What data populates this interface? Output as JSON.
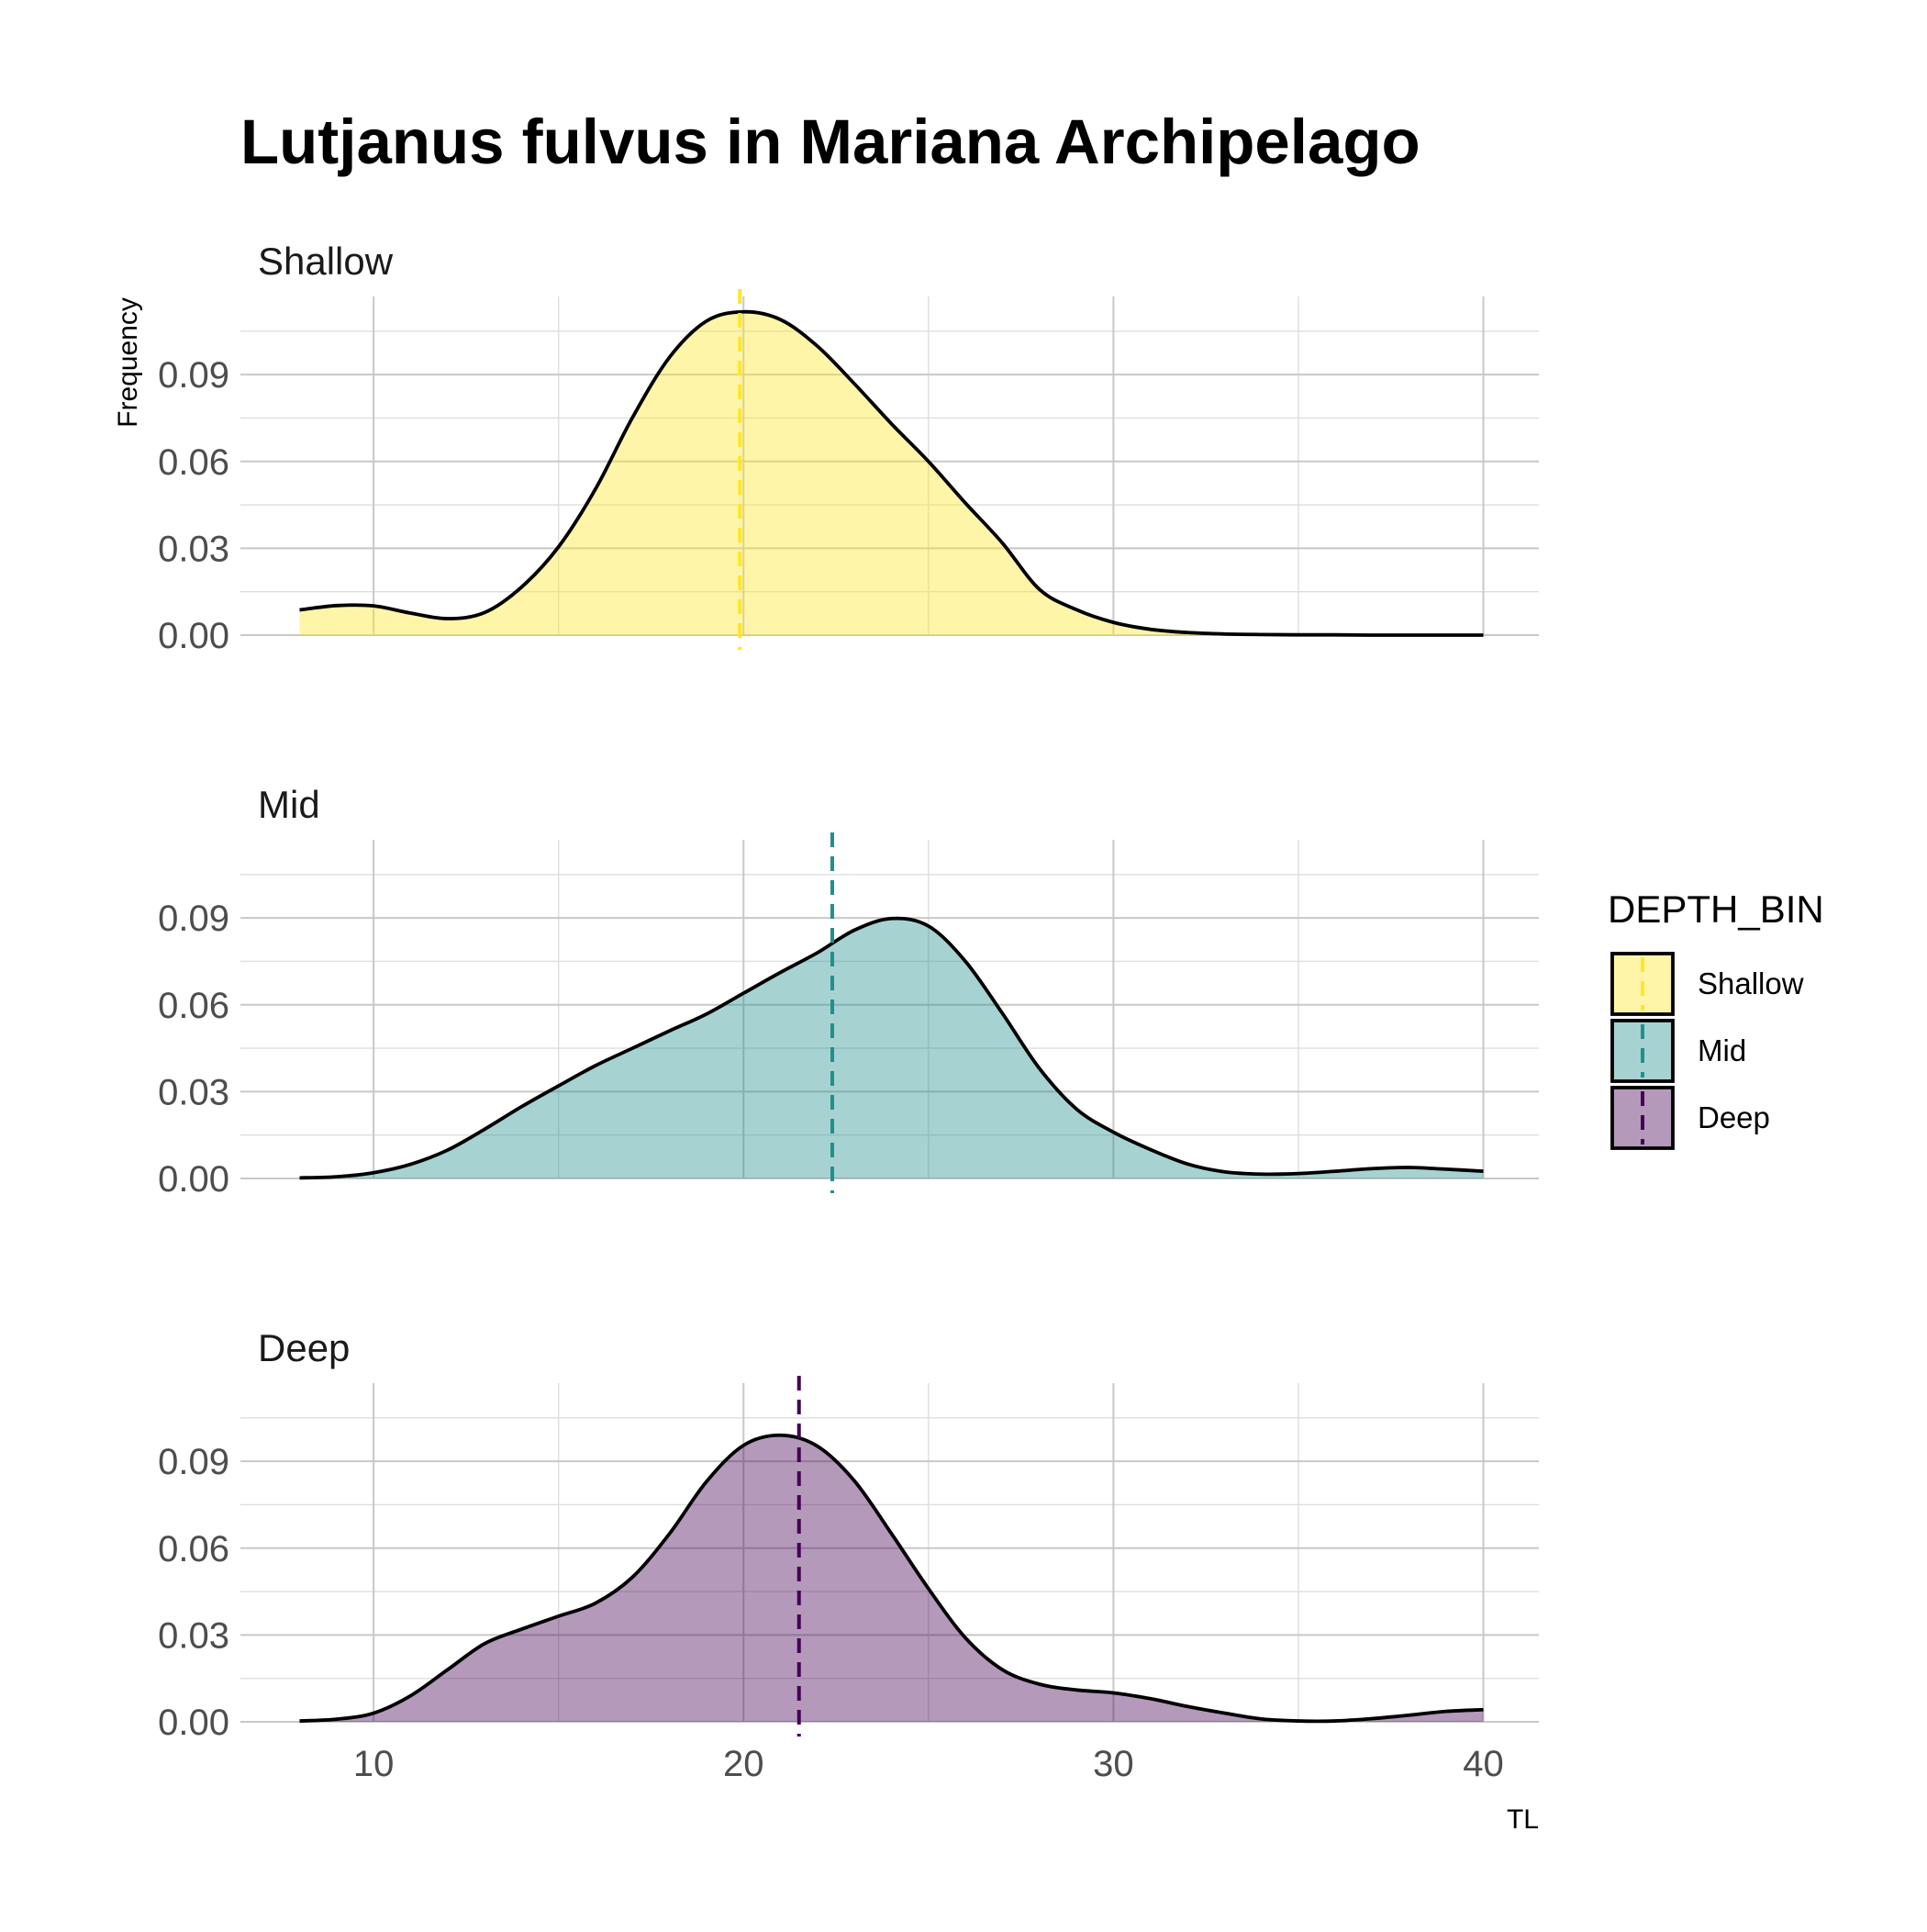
{
  "chart_data": {
    "type": "area",
    "subtype": "density, faceted by depth bin",
    "title": "Lutjanus fulvus in Mariana Archipelago",
    "xlabel": "TL",
    "ylabel": "Frequency",
    "xlim": [
      6.4,
      41.5
    ],
    "ylim": [
      0,
      0.117
    ],
    "x_ticks": [
      10,
      20,
      30,
      40
    ],
    "y_ticks": [
      0,
      0.03,
      0.06,
      0.09
    ],
    "y_tick_labels": [
      "0.00",
      "0.03",
      "0.06",
      "0.09"
    ],
    "x_minor_ticks": [
      15,
      25,
      35
    ],
    "y_minor_ticks": [
      0.015,
      0.045,
      0.075,
      0.105
    ],
    "grid": true,
    "legend": {
      "title": "DEPTH_BIN",
      "position": "right",
      "entries": [
        "Shallow",
        "Mid",
        "Deep"
      ]
    },
    "series": [
      {
        "name": "Shallow",
        "fill": "#FDE725",
        "fill_opacity": 0.4,
        "mean": 19.9,
        "x": [
          8,
          9,
          10,
          11,
          12,
          13,
          14,
          15,
          16,
          17,
          18,
          19,
          20,
          21,
          22,
          23,
          24,
          25,
          26,
          27,
          28,
          29,
          30,
          31,
          32,
          33,
          34,
          35,
          36,
          37,
          38,
          39,
          40
        ],
        "y": [
          0.0087,
          0.0102,
          0.0101,
          0.0076,
          0.0057,
          0.0078,
          0.0166,
          0.0305,
          0.0505,
          0.0752,
          0.096,
          0.1085,
          0.1117,
          0.109,
          0.0998,
          0.0868,
          0.073,
          0.06,
          0.0456,
          0.0318,
          0.0158,
          0.0088,
          0.0044,
          0.002,
          0.0009,
          0.0004,
          0.0002,
          0.0001,
          0.0001,
          0.0,
          0.0,
          0.0,
          0.0
        ]
      },
      {
        "name": "Mid",
        "fill": "#21908C",
        "fill_opacity": 0.4,
        "mean": 22.4,
        "x": [
          8,
          9,
          10,
          11,
          12,
          13,
          14,
          15,
          16,
          17,
          18,
          19,
          20,
          21,
          22,
          23,
          24,
          25,
          26,
          27,
          28,
          29,
          30,
          31,
          32,
          33,
          34,
          35,
          36,
          37,
          38,
          39,
          40
        ],
        "y": [
          0.0002,
          0.0006,
          0.002,
          0.0049,
          0.0098,
          0.017,
          0.0248,
          0.032,
          0.039,
          0.045,
          0.051,
          0.0568,
          0.064,
          0.0712,
          0.078,
          0.0858,
          0.0898,
          0.0872,
          0.075,
          0.057,
          0.038,
          0.024,
          0.016,
          0.01,
          0.005,
          0.0023,
          0.0015,
          0.0017,
          0.0025,
          0.0034,
          0.0038,
          0.0032,
          0.0025
        ]
      },
      {
        "name": "Deep",
        "fill": "#440154",
        "fill_opacity": 0.4,
        "mean": 21.5,
        "x": [
          8,
          9,
          10,
          11,
          12,
          13,
          14,
          15,
          16,
          17,
          18,
          19,
          20,
          21,
          22,
          23,
          24,
          25,
          26,
          27,
          28,
          29,
          30,
          31,
          32,
          33,
          34,
          35,
          36,
          37,
          38,
          39,
          40
        ],
        "y": [
          0.0003,
          0.0009,
          0.003,
          0.009,
          0.018,
          0.027,
          0.032,
          0.0365,
          0.041,
          0.05,
          0.065,
          0.083,
          0.0955,
          0.099,
          0.0952,
          0.0832,
          0.065,
          0.046,
          0.029,
          0.018,
          0.013,
          0.011,
          0.01,
          0.008,
          0.0053,
          0.003,
          0.001,
          0.0003,
          0.0003,
          0.0011,
          0.0023,
          0.0036,
          0.0042
        ]
      }
    ]
  }
}
